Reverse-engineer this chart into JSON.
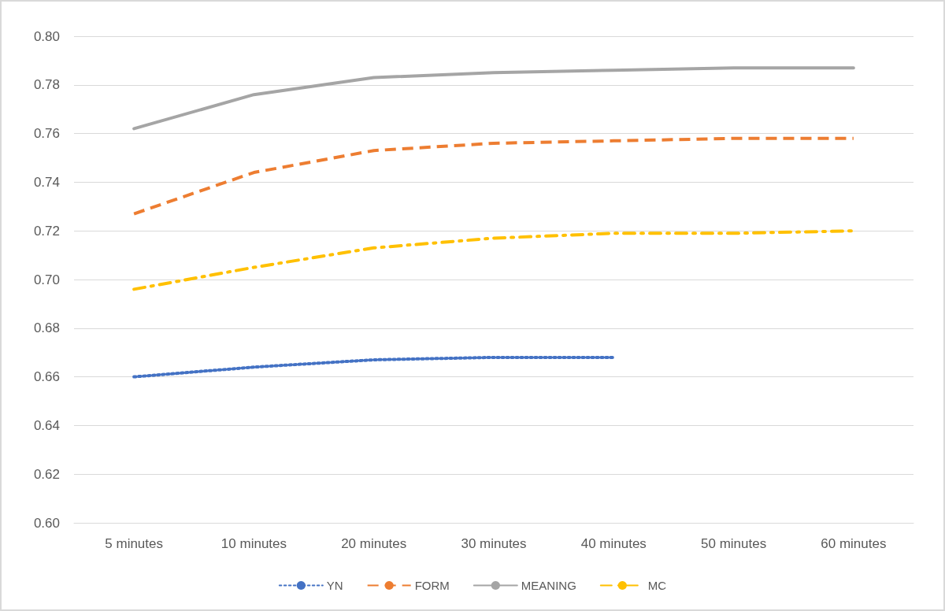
{
  "chart_data": {
    "type": "line",
    "categories": [
      "5 minutes",
      "10 minutes",
      "20 minutes",
      "30 minutes",
      "40 minutes",
      "50 minutes",
      "60 minutes"
    ],
    "series": [
      {
        "name": "YN",
        "color": "#4472c4",
        "line_style": "dotted",
        "values": [
          0.66,
          0.664,
          0.667,
          0.668,
          0.668,
          null,
          null
        ]
      },
      {
        "name": "FORM",
        "color": "#ed7d31",
        "line_style": "dashed",
        "values": [
          0.727,
          0.744,
          0.753,
          0.756,
          0.757,
          0.758,
          0.758
        ]
      },
      {
        "name": "MEANING",
        "color": "#a5a5a5",
        "line_style": "solid",
        "values": [
          0.762,
          0.776,
          0.783,
          0.785,
          0.786,
          0.787,
          0.787
        ]
      },
      {
        "name": "MC",
        "color": "#ffc000",
        "line_style": "dashdot",
        "values": [
          0.696,
          0.705,
          0.713,
          0.717,
          0.719,
          0.719,
          0.72
        ]
      }
    ],
    "ylim": [
      0.6,
      0.8
    ],
    "yticks": [
      {
        "value": 0.6,
        "label": "0.60"
      },
      0.62,
      0.64,
      0.66,
      0.68,
      {
        "value": 0.7,
        "label": "0.70"
      },
      0.72,
      0.74,
      0.76,
      0.78,
      {
        "value": 0.8,
        "label": "0.80"
      }
    ],
    "grid": "y",
    "legend": "bottom",
    "marker": "none"
  }
}
